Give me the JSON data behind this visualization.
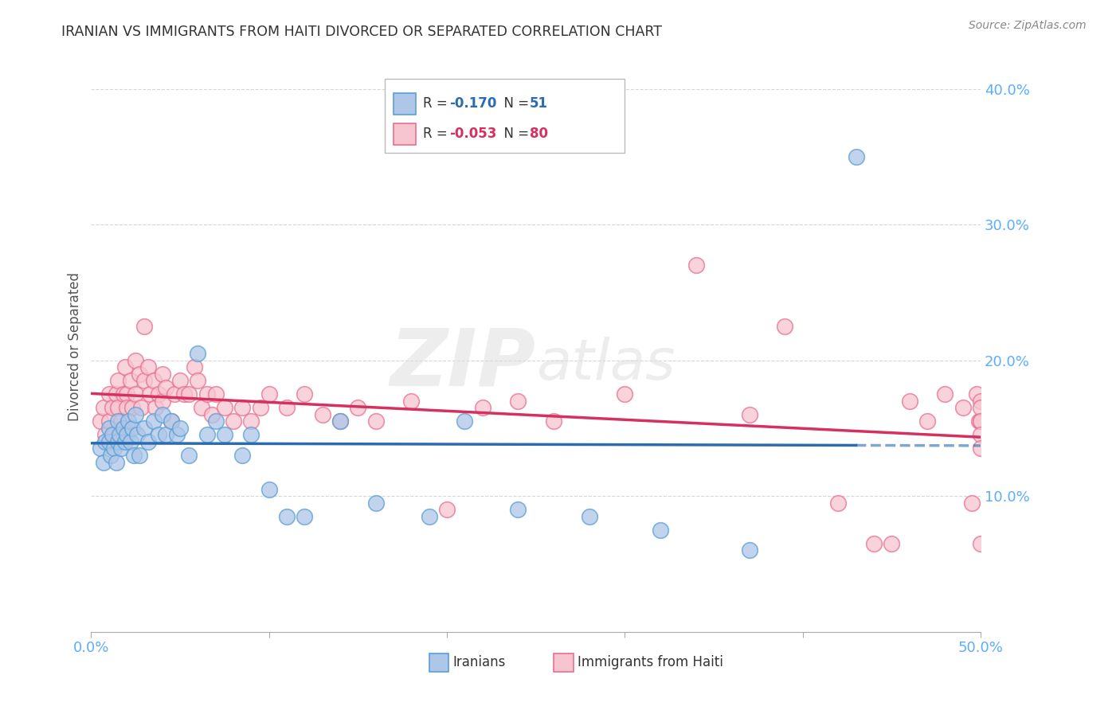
{
  "title": "IRANIAN VS IMMIGRANTS FROM HAITI DIVORCED OR SEPARATED CORRELATION CHART",
  "source": "Source: ZipAtlas.com",
  "ylabel": "Divorced or Separated",
  "legend_iranians": "Iranians",
  "legend_haiti": "Immigrants from Haiti",
  "r_iranians": -0.17,
  "n_iranians": 51,
  "r_haiti": -0.053,
  "n_haiti": 80,
  "iranians_color": "#aec6e8",
  "iranians_edge_color": "#5a9fd4",
  "iranians_line_color": "#2b6cb0",
  "haiti_color": "#f7c5d0",
  "haiti_edge_color": "#e87090",
  "haiti_line_color": "#d63060",
  "background_color": "#ffffff",
  "grid_color": "#cccccc",
  "xlim": [
    0.0,
    0.5
  ],
  "ylim": [
    0.0,
    0.42
  ],
  "yticks": [
    0.1,
    0.2,
    0.3,
    0.4
  ],
  "ytick_labels": [
    "10.0%",
    "20.0%",
    "30.0%",
    "40.0%"
  ],
  "xticks": [
    0.0,
    0.1,
    0.2,
    0.3,
    0.4,
    0.5
  ],
  "iranians_x": [
    0.005,
    0.007,
    0.008,
    0.01,
    0.01,
    0.011,
    0.012,
    0.013,
    0.014,
    0.015,
    0.015,
    0.016,
    0.017,
    0.018,
    0.019,
    0.02,
    0.021,
    0.022,
    0.023,
    0.024,
    0.025,
    0.026,
    0.027,
    0.03,
    0.032,
    0.035,
    0.038,
    0.04,
    0.042,
    0.045,
    0.048,
    0.05,
    0.055,
    0.06,
    0.065,
    0.07,
    0.075,
    0.085,
    0.09,
    0.1,
    0.11,
    0.12,
    0.14,
    0.16,
    0.19,
    0.21,
    0.24,
    0.28,
    0.32,
    0.37,
    0.43
  ],
  "iranians_y": [
    0.135,
    0.125,
    0.14,
    0.15,
    0.14,
    0.13,
    0.145,
    0.135,
    0.125,
    0.155,
    0.14,
    0.145,
    0.135,
    0.15,
    0.14,
    0.145,
    0.155,
    0.14,
    0.15,
    0.13,
    0.16,
    0.145,
    0.13,
    0.15,
    0.14,
    0.155,
    0.145,
    0.16,
    0.145,
    0.155,
    0.145,
    0.15,
    0.13,
    0.205,
    0.145,
    0.155,
    0.145,
    0.13,
    0.145,
    0.105,
    0.085,
    0.085,
    0.155,
    0.095,
    0.085,
    0.155,
    0.09,
    0.085,
    0.075,
    0.06,
    0.35
  ],
  "haiti_x": [
    0.005,
    0.007,
    0.008,
    0.01,
    0.01,
    0.012,
    0.013,
    0.014,
    0.015,
    0.015,
    0.017,
    0.018,
    0.019,
    0.02,
    0.02,
    0.022,
    0.023,
    0.025,
    0.025,
    0.027,
    0.028,
    0.03,
    0.03,
    0.032,
    0.033,
    0.035,
    0.036,
    0.038,
    0.04,
    0.04,
    0.042,
    0.045,
    0.047,
    0.05,
    0.052,
    0.055,
    0.058,
    0.06,
    0.062,
    0.065,
    0.068,
    0.07,
    0.075,
    0.08,
    0.085,
    0.09,
    0.095,
    0.1,
    0.11,
    0.12,
    0.13,
    0.14,
    0.15,
    0.16,
    0.18,
    0.2,
    0.22,
    0.24,
    0.26,
    0.3,
    0.34,
    0.37,
    0.39,
    0.42,
    0.44,
    0.45,
    0.46,
    0.47,
    0.48,
    0.49,
    0.495,
    0.498,
    0.499,
    0.5,
    0.5,
    0.5,
    0.5,
    0.5,
    0.5,
    0.5
  ],
  "haiti_y": [
    0.155,
    0.165,
    0.145,
    0.175,
    0.155,
    0.165,
    0.145,
    0.175,
    0.185,
    0.165,
    0.155,
    0.175,
    0.195,
    0.175,
    0.165,
    0.185,
    0.165,
    0.2,
    0.175,
    0.19,
    0.165,
    0.225,
    0.185,
    0.195,
    0.175,
    0.185,
    0.165,
    0.175,
    0.19,
    0.17,
    0.18,
    0.155,
    0.175,
    0.185,
    0.175,
    0.175,
    0.195,
    0.185,
    0.165,
    0.175,
    0.16,
    0.175,
    0.165,
    0.155,
    0.165,
    0.155,
    0.165,
    0.175,
    0.165,
    0.175,
    0.16,
    0.155,
    0.165,
    0.155,
    0.17,
    0.09,
    0.165,
    0.17,
    0.155,
    0.175,
    0.27,
    0.16,
    0.225,
    0.095,
    0.065,
    0.065,
    0.17,
    0.155,
    0.175,
    0.165,
    0.095,
    0.175,
    0.155,
    0.065,
    0.17,
    0.155,
    0.165,
    0.155,
    0.145,
    0.135
  ]
}
